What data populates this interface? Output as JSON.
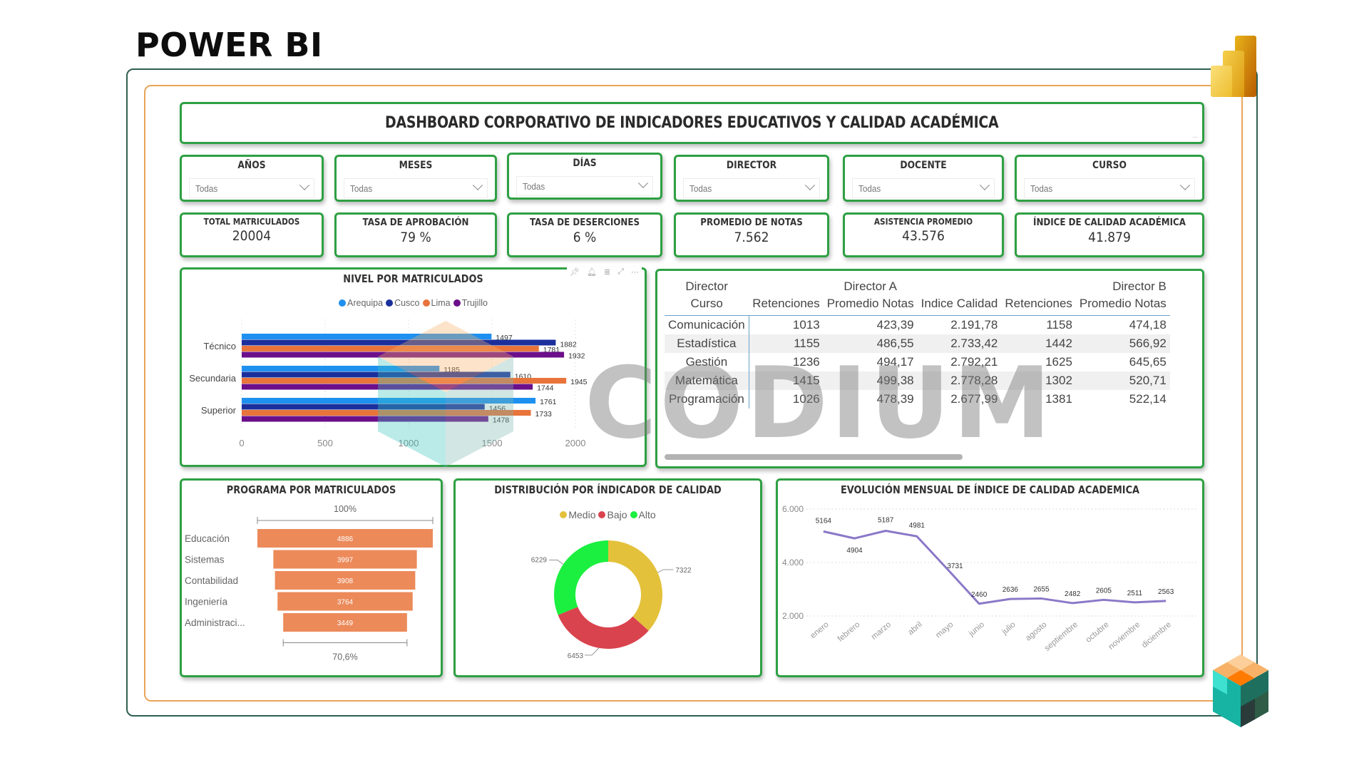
{
  "page": {
    "title": "POWER BI"
  },
  "dashboard": {
    "title": "DASHBOARD CORPORATIVO DE INDICADORES EDUCATIVOS Y CALIDAD ACADÉMICA",
    "more_icon": "..."
  },
  "slicers": [
    {
      "label": "AÑOS",
      "value": "Todas"
    },
    {
      "label": "MESES",
      "value": "Todas"
    },
    {
      "label": "DÍAS",
      "value": "Todas"
    },
    {
      "label": "DIRECTOR",
      "value": "Todas"
    },
    {
      "label": "DOCENTE",
      "value": "Todas"
    },
    {
      "label": "CURSO",
      "value": "Todas"
    }
  ],
  "kpis": [
    {
      "label": "TOTAL MATRICULADOS",
      "value": "20004"
    },
    {
      "label": "TASA DE APROBACIÓN",
      "value": "79 %"
    },
    {
      "label": "TASA DE DESERCIONES",
      "value": "6 %"
    },
    {
      "label": "PROMEDIO DE NOTAS",
      "value": "7.562"
    },
    {
      "label": "ASISTENCIA PROMEDIO",
      "value": "43.576"
    },
    {
      "label": "ÍNDICE DE CALIDAD ACADÉMICA",
      "value": "41.879"
    }
  ],
  "bar_chart": {
    "title": "NIVEL POR MATRICULADOS",
    "legend": [
      {
        "name": "Arequipa",
        "color": "#1e90f0"
      },
      {
        "name": "Cusco",
        "color": "#1a2f9c"
      },
      {
        "name": "Lima",
        "color": "#e8743b"
      },
      {
        "name": "Trujillo",
        "color": "#6b0f8a"
      }
    ],
    "categories": [
      "Técnico",
      "Secundaria",
      "Superior"
    ],
    "x_ticks": [
      "0",
      "500",
      "1000",
      "1500",
      "2000"
    ],
    "header_icons": [
      "pin-icon",
      "bell-icon",
      "filter-icon",
      "focus-mode-icon",
      "more-options-icon"
    ]
  },
  "matrix": {
    "header_row1": [
      "Director",
      "",
      "Director A",
      "",
      "",
      "Director B"
    ],
    "header_row2": [
      "Curso",
      "Retenciones",
      "Promedio Notas",
      "Indice Calidad",
      "Retenciones",
      "Promedio Notas"
    ],
    "rows": [
      [
        "Comunicación",
        "1013",
        "423,39",
        "2.191,78",
        "1158",
        "474,18"
      ],
      [
        "Estadística",
        "1155",
        "486,55",
        "2.733,42",
        "1442",
        "566,92"
      ],
      [
        "Gestión",
        "1236",
        "494,17",
        "2.792,21",
        "1625",
        "645,65"
      ],
      [
        "Matemática",
        "1415",
        "499,38",
        "2.778,28",
        "1302",
        "520,71"
      ],
      [
        "Programación",
        "1026",
        "478,39",
        "2.677,99",
        "1381",
        "522,14"
      ]
    ]
  },
  "funnel": {
    "title": "PROGRAMA POR MATRICULADOS",
    "top_pct": "100%",
    "bottom_pct": "70,6%",
    "bar_color": "#ec8a5a"
  },
  "donut": {
    "title": "DISTRIBUCIÓN POR ÍNDICADOR DE CALIDAD",
    "legend": [
      {
        "name": "Medio",
        "color": "#e3c13b"
      },
      {
        "name": "Bajo",
        "color": "#d9434e"
      },
      {
        "name": "Alto",
        "color": "#1bef3f"
      }
    ]
  },
  "line": {
    "title": "EVOLUCIÓN MENSUAL DE ÍNDICE DE CALIDAD ACADEMICA",
    "y_ticks": [
      "6.000",
      "4.000",
      "2.000"
    ],
    "line_color": "#8b78c8"
  },
  "watermark": {
    "text": "CODIUM"
  },
  "colors": {
    "card_border": "#2ea043",
    "frame_outer": "#2f5f52",
    "frame_inner": "#e8a55a"
  },
  "chart_data": [
    {
      "type": "bar",
      "orientation": "horizontal",
      "title": "NIVEL POR MATRICULADOS",
      "categories": [
        "Técnico",
        "Secundaria",
        "Superior"
      ],
      "series": [
        {
          "name": "Arequipa",
          "values": [
            1497,
            1185,
            1761
          ]
        },
        {
          "name": "Cusco",
          "values": [
            1882,
            1610,
            1456
          ]
        },
        {
          "name": "Lima",
          "values": [
            1781,
            1945,
            1733
          ]
        },
        {
          "name": "Trujillo",
          "values": [
            1932,
            1744,
            1478
          ]
        }
      ],
      "xlabel": "",
      "ylabel": "",
      "xlim": [
        0,
        2000
      ],
      "x_ticks": [
        0,
        500,
        1000,
        1500,
        2000
      ],
      "legend_position": "top",
      "grid": true
    },
    {
      "type": "bar",
      "subtype": "funnel",
      "title": "PROGRAMA POR MATRICULADOS",
      "categories": [
        "Educación",
        "Sistemas",
        "Contabilidad",
        "Ingeniería",
        "Administraci..."
      ],
      "values": [
        4886,
        3997,
        3908,
        3764,
        3449
      ],
      "annotations": [
        "100%",
        "70,6%"
      ]
    },
    {
      "type": "pie",
      "subtype": "donut",
      "title": "DISTRIBUCIÓN POR ÍNDICADOR DE CALIDAD",
      "categories": [
        "Medio",
        "Bajo",
        "Alto"
      ],
      "values": [
        7322,
        6453,
        6229
      ],
      "legend_position": "top"
    },
    {
      "type": "line",
      "title": "EVOLUCIÓN MENSUAL DE ÍNDICE DE CALIDAD ACADEMICA",
      "x": [
        "enero",
        "febrero",
        "marzo",
        "abril",
        "mayo",
        "junio",
        "julio",
        "agosto",
        "septiembre",
        "octubre",
        "noviembre",
        "diciembre"
      ],
      "values": [
        5164,
        4904,
        5187,
        4981,
        3731,
        2460,
        2636,
        2655,
        2482,
        2605,
        2511,
        2563
      ],
      "y_ticks": [
        2000,
        4000,
        6000
      ],
      "ylim": [
        2000,
        6000
      ],
      "grid": true
    }
  ]
}
